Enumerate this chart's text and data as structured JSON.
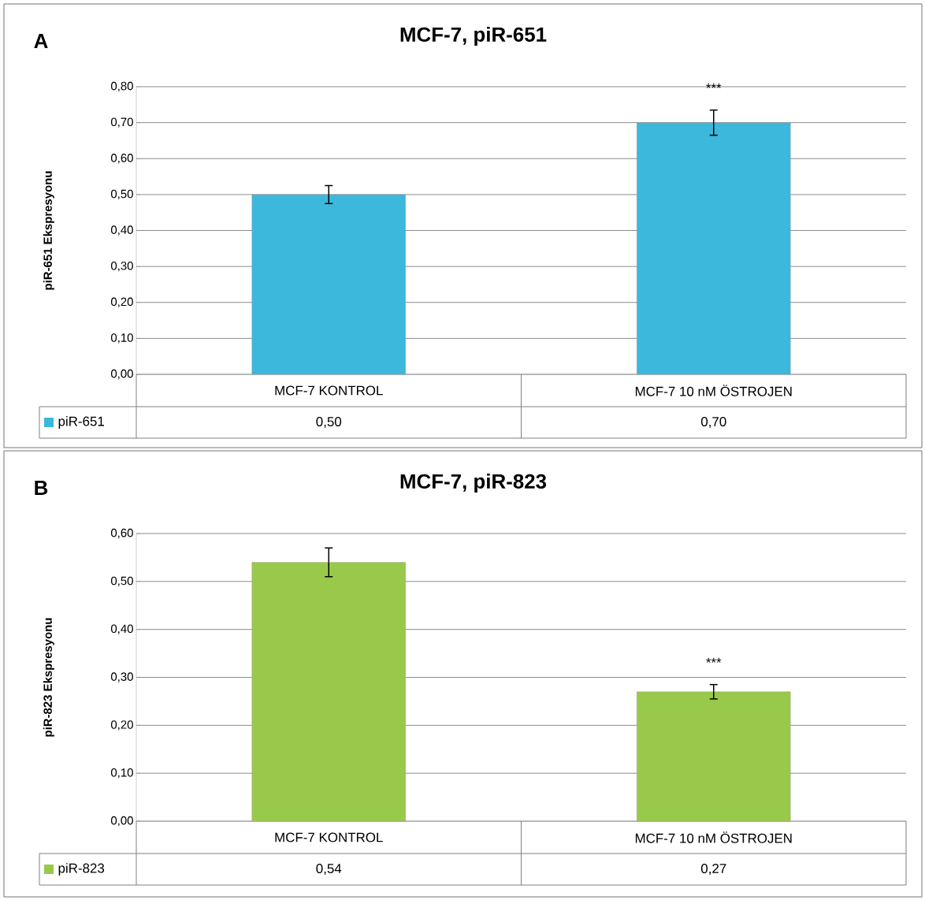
{
  "chart_data": [
    {
      "type": "bar",
      "title": "MCF-7, piR-651",
      "ylabel": "piR-651 Ekspresyonu",
      "categories": [
        "MCF-7 KONTROL",
        "MCF-7 10 nM ÖSTROJEN"
      ],
      "series": [
        {
          "name": "piR-651",
          "color": "#3bb8dc",
          "values": [
            0.5,
            0.7
          ],
          "errors": [
            0.025,
            0.035
          ]
        }
      ],
      "ylim": [
        0,
        0.8
      ],
      "yticks": [
        {
          "value": 0,
          "label": "0,00"
        },
        {
          "value": 0.1,
          "label": "0,10"
        },
        {
          "value": 0.2,
          "label": "0,20"
        },
        {
          "value": 0.3,
          "label": "0,30"
        },
        {
          "value": 0.4,
          "label": "0,40"
        },
        {
          "value": 0.5,
          "label": "0,50"
        },
        {
          "value": 0.6,
          "label": "0,60"
        },
        {
          "value": 0.7,
          "label": "0,70"
        },
        {
          "value": 0.8,
          "label": "0,80"
        }
      ],
      "value_labels": [
        "0,50",
        "0,70"
      ],
      "grid": "y",
      "legend": "bottom left",
      "annotations": [
        "A",
        "***"
      ]
    },
    {
      "type": "bar",
      "title": "MCF-7, piR-823",
      "ylabel": "piR-823 Ekspresyonu",
      "categories": [
        "MCF-7 KONTROL",
        "MCF-7 10 nM ÖSTROJEN"
      ],
      "series": [
        {
          "name": "piR-823",
          "color": "#99c94a",
          "values": [
            0.54,
            0.27
          ],
          "errors": [
            0.03,
            0.015
          ]
        }
      ],
      "ylim": [
        0,
        0.6
      ],
      "yticks": [
        {
          "value": 0,
          "label": "0,00"
        },
        {
          "value": 0.1,
          "label": "0,10"
        },
        {
          "value": 0.2,
          "label": "0,20"
        },
        {
          "value": 0.3,
          "label": "0,30"
        },
        {
          "value": 0.4,
          "label": "0,40"
        },
        {
          "value": 0.5,
          "label": "0,50"
        },
        {
          "value": 0.6,
          "label": "0,60"
        }
      ],
      "value_labels": [
        "0,54",
        "0,27"
      ],
      "grid": "y",
      "legend": "bottom left",
      "annotations": [
        "B",
        "***"
      ]
    }
  ]
}
